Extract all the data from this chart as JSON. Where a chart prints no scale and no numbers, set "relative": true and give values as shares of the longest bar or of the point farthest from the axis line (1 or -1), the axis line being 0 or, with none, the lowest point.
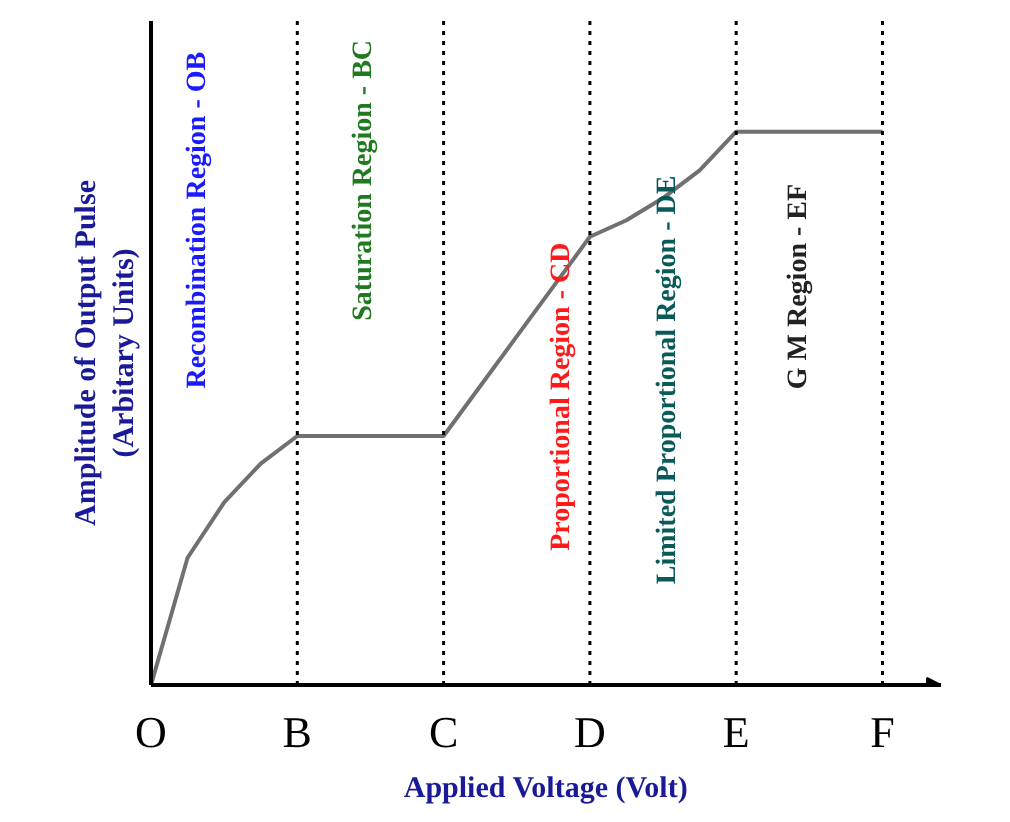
{
  "chart_data": {
    "type": "line",
    "relative": true,
    "xlabel": "Applied Voltage (Volt)",
    "ylabel": "Amplitude of Output Pulse\n(Arbitary Units)",
    "categories": [
      "O",
      null,
      null,
      null,
      "B",
      null,
      null,
      null,
      "C",
      null,
      null,
      null,
      "D",
      null,
      null,
      null,
      "E",
      null,
      null,
      null,
      "F"
    ],
    "series": [
      {
        "color": "#707070",
        "values": [
          0,
          0.23,
          0.33,
          0.4,
          0.45,
          0.45,
          0.45,
          0.45,
          0.45,
          0.54,
          0.63,
          0.72,
          0.81,
          0.84,
          0.88,
          0.93,
          1,
          1,
          1,
          1,
          1
        ]
      }
    ],
    "ref_lines": [
      {
        "axis": "x",
        "value": "B",
        "line_style": "dotted",
        "color": "#000000"
      },
      {
        "axis": "x",
        "value": "C",
        "line_style": "dotted",
        "color": "#000000"
      },
      {
        "axis": "x",
        "value": "D",
        "line_style": "dotted",
        "color": "#000000"
      },
      {
        "axis": "x",
        "value": "E",
        "line_style": "dotted",
        "color": "#000000"
      },
      {
        "axis": "x",
        "value": "F",
        "line_style": "dotted",
        "color": "#000000"
      }
    ],
    "annotations": [
      "Recombination Region - OB",
      "Saturation Region - BC",
      "Proportional Region    - CD",
      "Limited Proportional Region   - DE",
      "G M Region - EF"
    ],
    "grid": false,
    "marker": "none",
    "line_style": "solid"
  }
}
